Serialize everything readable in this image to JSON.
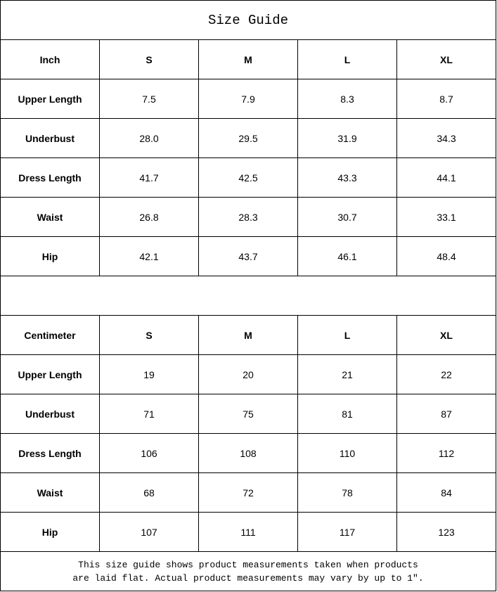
{
  "title": "Size Guide",
  "sizes": [
    "S",
    "M",
    "L",
    "XL"
  ],
  "inch": {
    "unit_label": "Inch",
    "rows": [
      {
        "label": "Upper Length",
        "values": [
          "7.5",
          "7.9",
          "8.3",
          "8.7"
        ]
      },
      {
        "label": "Underbust",
        "values": [
          "28.0",
          "29.5",
          "31.9",
          "34.3"
        ]
      },
      {
        "label": "Dress Length",
        "values": [
          "41.7",
          "42.5",
          "43.3",
          "44.1"
        ]
      },
      {
        "label": "Waist",
        "values": [
          "26.8",
          "28.3",
          "30.7",
          "33.1"
        ]
      },
      {
        "label": "Hip",
        "values": [
          "42.1",
          "43.7",
          "46.1",
          "48.4"
        ]
      }
    ]
  },
  "centimeter": {
    "unit_label": "Centimeter",
    "rows": [
      {
        "label": "Upper Length",
        "values": [
          "19",
          "20",
          "21",
          "22"
        ]
      },
      {
        "label": "Underbust",
        "values": [
          "71",
          "75",
          "81",
          "87"
        ]
      },
      {
        "label": "Dress Length",
        "values": [
          "106",
          "108",
          "110",
          "112"
        ]
      },
      {
        "label": "Waist",
        "values": [
          "68",
          "72",
          "78",
          "84"
        ]
      },
      {
        "label": "Hip",
        "values": [
          "107",
          "111",
          "117",
          "123"
        ]
      }
    ]
  },
  "note": {
    "line1": "This size guide shows product measurements taken when products",
    "line2": "are laid flat. Actual product measurements may vary by up to 1″."
  }
}
